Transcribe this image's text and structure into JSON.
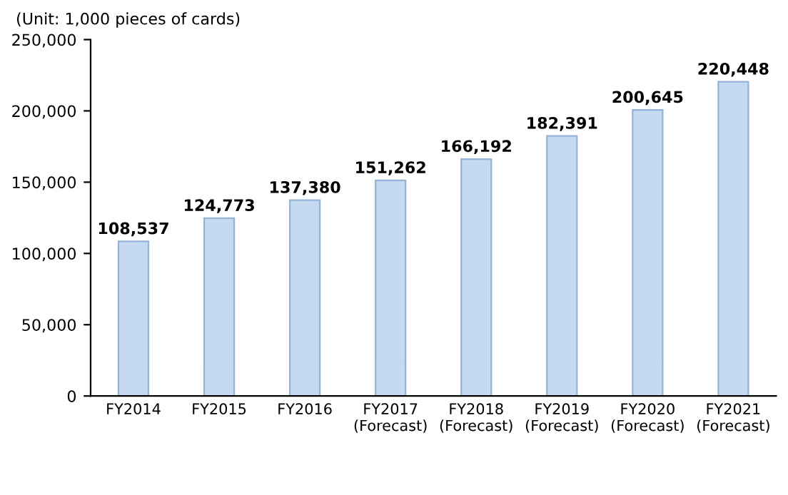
{
  "chart_data": {
    "type": "bar",
    "ylabel": "(Unit: 1,000 pieces of cards)",
    "categories": [
      "FY2014",
      "FY2015",
      "FY2016",
      "FY2017\n(Forecast)",
      "FY2018\n(Forecast)",
      "FY2019\n(Forecast)",
      "FY2020\n(Forecast)",
      "FY2021\n(Forecast)"
    ],
    "values": [
      108537,
      124773,
      137380,
      151262,
      166192,
      182391,
      200645,
      220448
    ],
    "value_labels": [
      "108,537",
      "124,773",
      "137,380",
      "151,262",
      "166,192",
      "182,391",
      "200,645",
      "220,448"
    ],
    "color": "#c5d9f1",
    "ylim": [
      0,
      250000
    ],
    "yticks": [
      {
        "value": 0,
        "label": "0"
      },
      {
        "value": 50000,
        "label": "50,000"
      },
      {
        "value": 100000,
        "label": "100,000"
      },
      {
        "value": 150000,
        "label": "150,000"
      },
      {
        "value": 200000,
        "label": "200,000"
      },
      {
        "value": 250000,
        "label": "250,000"
      }
    ],
    "grid": false,
    "legend": false
  }
}
